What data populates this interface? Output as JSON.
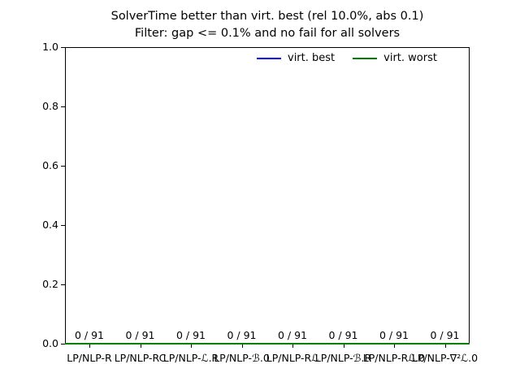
{
  "title": {
    "line1": "SolverTime better than virt. best (rel 10.0%, abs 0.1)",
    "line2": "Filter: gap <= 0.1% and no fail for all solvers"
  },
  "colors": {
    "virt_best": "#0000ff",
    "virt_worst": "#008000",
    "axis": "#000000",
    "text": "#000000",
    "background": "#ffffff"
  },
  "legend": {
    "position": "upper right",
    "entries": [
      {
        "label": "virt. best",
        "color": "#0000ff"
      },
      {
        "label": "virt. worst",
        "color": "#008000"
      }
    ]
  },
  "y_axis": {
    "min": 0.0,
    "max": 1.0,
    "tick_labels": [
      "1.0",
      "0.8",
      "0.6",
      "0.4",
      "0.2",
      "0.0"
    ]
  },
  "x_axis": {
    "tick_labels": [
      "LP/NLP-R",
      "LP/NLP-RC",
      "LP/NLP-ℒ.R",
      "LP/NLP-ℬ.0",
      "LP/NLP-Rℒ",
      "LP/NLP-ℬ.R",
      "LP/NLP-Rℒ.0",
      "LP/NLP-∇²ℒ.0"
    ]
  },
  "annotations": [
    "0 / 91",
    "0 / 91",
    "0 / 91",
    "0 / 91",
    "0 / 91",
    "0 / 91",
    "0 / 91",
    "0 / 91"
  ],
  "chart_data": {
    "type": "line",
    "categories": [
      "LP/NLP-R",
      "LP/NLP-RC",
      "LP/NLP-ℒ.R",
      "LP/NLP-ℬ.0",
      "LP/NLP-Rℒ",
      "LP/NLP-ℬ.R",
      "LP/NLP-Rℒ.0",
      "LP/NLP-∇²ℒ.0"
    ],
    "series": [
      {
        "name": "virt. best",
        "color": "#0000ff",
        "values": [
          0,
          0,
          0,
          0,
          0,
          0,
          0,
          0
        ]
      },
      {
        "name": "virt. worst",
        "color": "#008000",
        "values": [
          0,
          0,
          0,
          0,
          0,
          0,
          0,
          0
        ]
      }
    ],
    "point_annotations": [
      "0 / 91",
      "0 / 91",
      "0 / 91",
      "0 / 91",
      "0 / 91",
      "0 / 91",
      "0 / 91",
      "0 / 91"
    ],
    "title": "SolverTime better than virt. best (rel 10.0%, abs 0.1)",
    "subtitle": "Filter: gap <= 0.1% and no fail for all solvers",
    "xlabel": "",
    "ylabel": "",
    "ylim": [
      0.0,
      1.0
    ],
    "yticks": [
      0.0,
      0.2,
      0.4,
      0.6,
      0.8,
      1.0
    ],
    "grid": false,
    "legend_position": "upper right"
  }
}
